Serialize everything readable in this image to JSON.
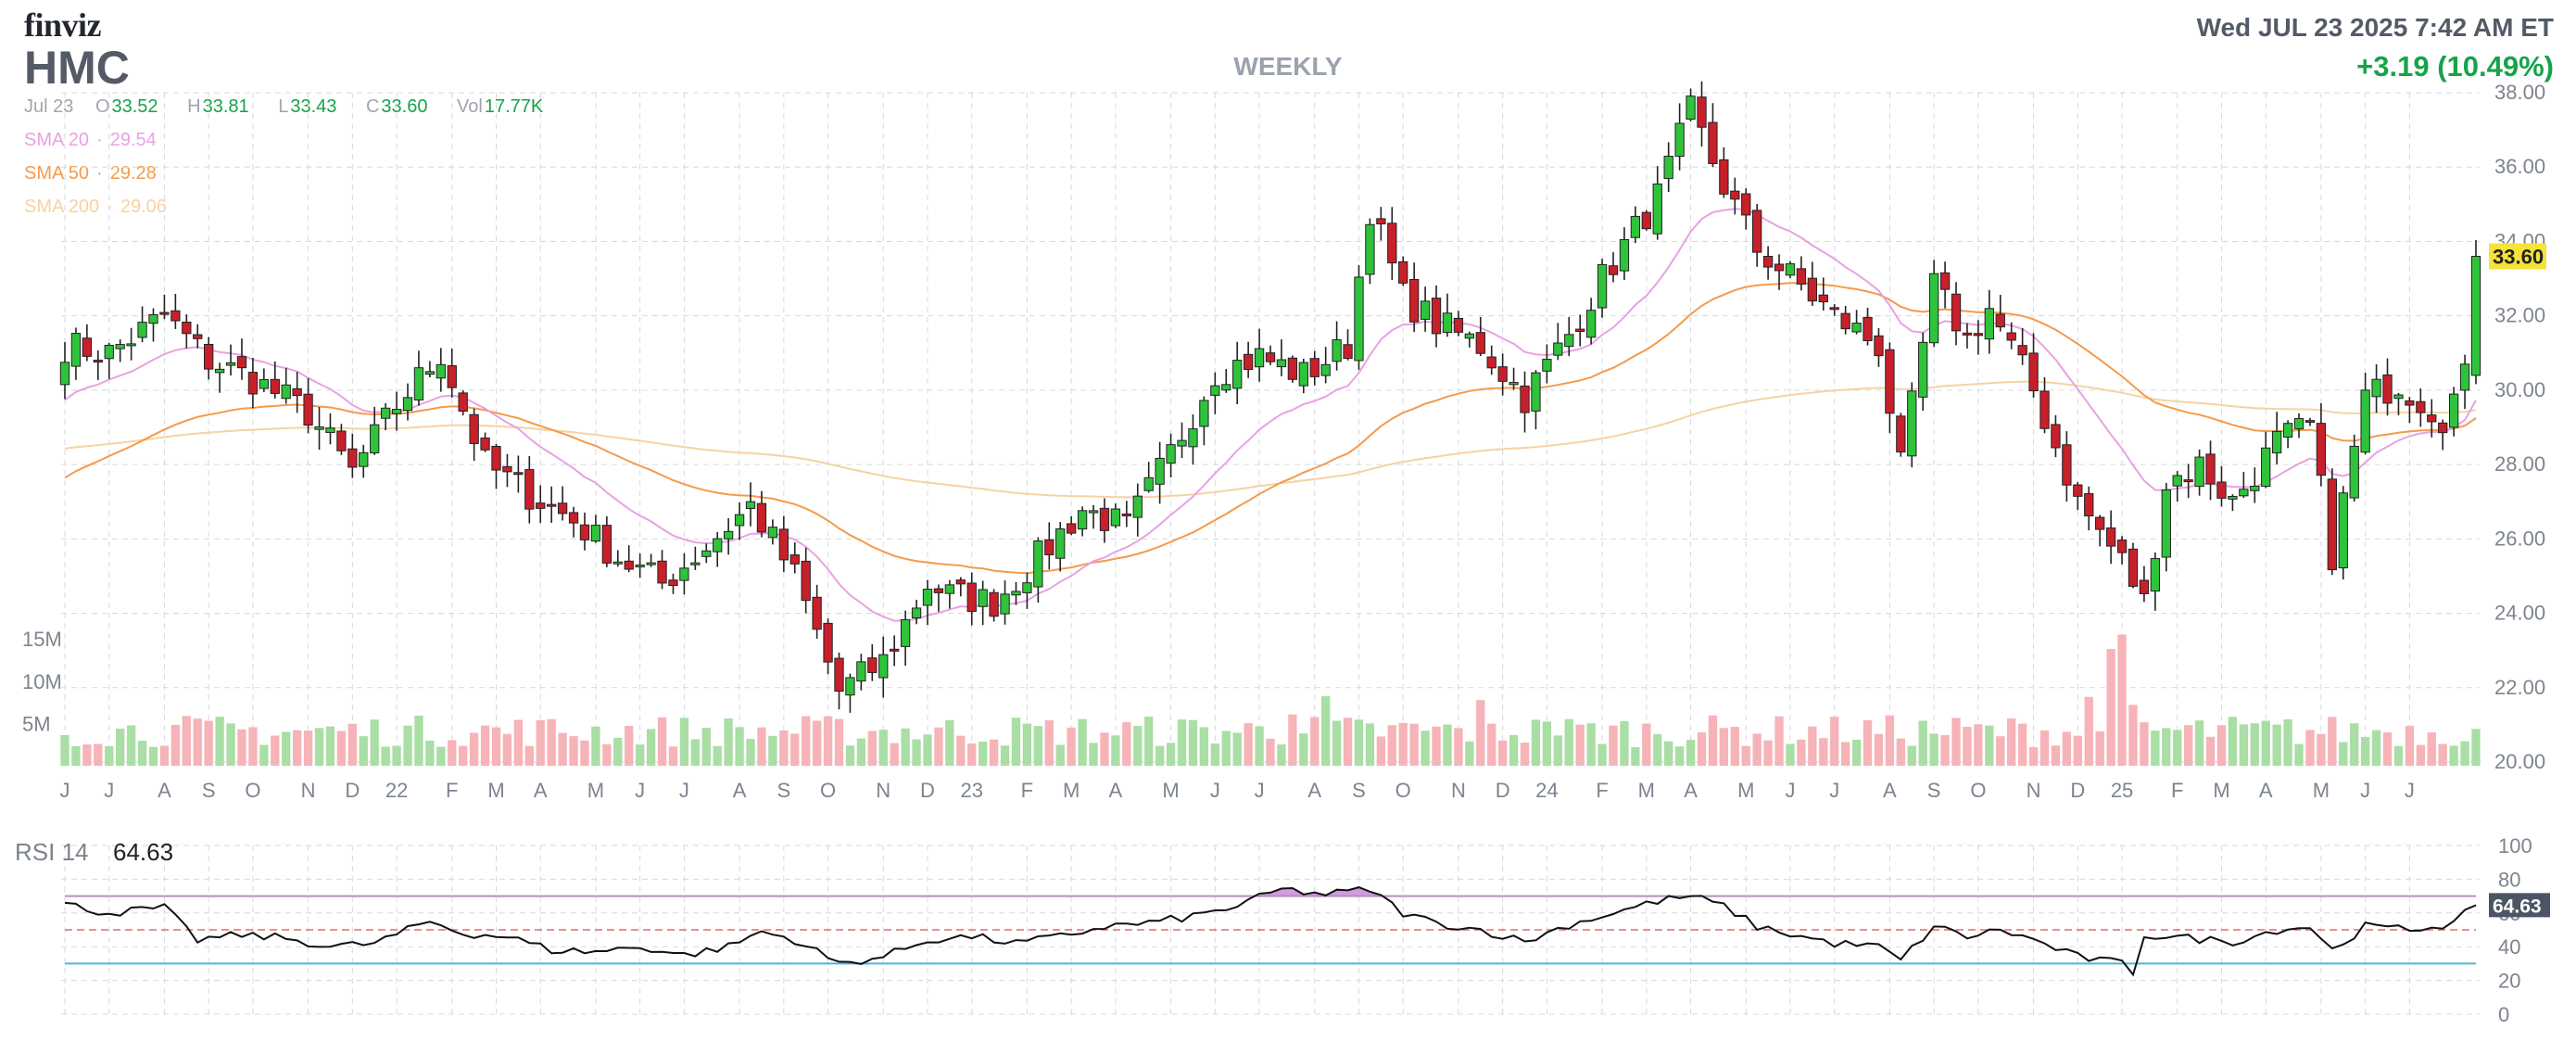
{
  "header": {
    "logo": "finviz",
    "ticker": "HMC",
    "timeframe": "WEEKLY",
    "datetime": "Wed JUL 23 2025 7:42 AM ET",
    "change": "+3.19 (10.49%)"
  },
  "ohlc": {
    "date": "Jul 23",
    "open_label": "O",
    "open": "33.52",
    "high_label": "H",
    "high": "33.81",
    "low_label": "L",
    "low": "33.43",
    "close_label": "C",
    "close": "33.60",
    "vol_label": "Vol",
    "vol": "17.77K"
  },
  "sma": [
    {
      "label": "SMA 20",
      "value": "29.54",
      "color": "#e8a2e2"
    },
    {
      "label": "SMA 50",
      "value": "29.28",
      "color": "#f59a4b"
    },
    {
      "label": "SMA 200",
      "value": "29.06",
      "color": "#f6d2a5"
    }
  ],
  "colors": {
    "up": "#2ec33b",
    "down": "#c8202a",
    "vol_up": "#a9dea5",
    "vol_down": "#f6b3b8",
    "grid": "#d6d9dd",
    "rsi_line": "#111111",
    "rsi_70": "#b48fbf",
    "rsi_50": "#e36b6b",
    "rsi_30": "#4fb6d6",
    "last_price_bg": "#f5e23a"
  },
  "chart_data": [
    {
      "type": "candlestick",
      "title": "HMC WEEKLY",
      "ylim": [
        20,
        38
      ],
      "yticks": [
        "38.00",
        "36.00",
        "34.00",
        "32.00",
        "30.00",
        "28.00",
        "26.00",
        "24.00",
        "22.00",
        "20.00"
      ],
      "x_labels": [
        "J",
        "J",
        "A",
        "S",
        "O",
        "N",
        "D",
        "22",
        "F",
        "M",
        "A",
        "M",
        "J",
        "J",
        "A",
        "S",
        "O",
        "N",
        "D",
        "23",
        "F",
        "M",
        "A",
        "M",
        "J",
        "J",
        "A",
        "S",
        "O",
        "N",
        "D",
        "24",
        "F",
        "M",
        "A",
        "M",
        "J",
        "J",
        "A",
        "S",
        "O",
        "N",
        "D",
        "25",
        "F",
        "M",
        "A",
        "M",
        "J",
        "J"
      ],
      "x_label_weeks": [
        0,
        4,
        9,
        13,
        17,
        22,
        26,
        30,
        35,
        39,
        43,
        48,
        52,
        56,
        61,
        65,
        69,
        74,
        78,
        82,
        87,
        91,
        95,
        100,
        104,
        108,
        113,
        117,
        121,
        126,
        130,
        134,
        139,
        143,
        147,
        152,
        156,
        160,
        165,
        169,
        173,
        178,
        182,
        186,
        191,
        195,
        199,
        204,
        208,
        212
      ],
      "last_price": "33.60",
      "close_anchors": [
        [
          0,
          31.2
        ],
        [
          4,
          31.0
        ],
        [
          9,
          32.0
        ],
        [
          13,
          30.8
        ],
        [
          17,
          30.3
        ],
        [
          22,
          29.4
        ],
        [
          26,
          27.8
        ],
        [
          30,
          29.6
        ],
        [
          34,
          31.0
        ],
        [
          38,
          28.0
        ],
        [
          42,
          27.2
        ],
        [
          46,
          26.5
        ],
        [
          50,
          25.5
        ],
        [
          54,
          24.8
        ],
        [
          58,
          25.8
        ],
        [
          62,
          26.9
        ],
        [
          66,
          25.0
        ],
        [
          70,
          21.9
        ],
        [
          74,
          22.7
        ],
        [
          78,
          24.8
        ],
        [
          80,
          24.5
        ],
        [
          84,
          24.3
        ],
        [
          88,
          25.5
        ],
        [
          92,
          26.8
        ],
        [
          96,
          26.3
        ],
        [
          100,
          28.3
        ],
        [
          104,
          30.5
        ],
        [
          108,
          30.9
        ],
        [
          112,
          30.4
        ],
        [
          116,
          31.2
        ],
        [
          118,
          34.9
        ],
        [
          121,
          32.5
        ],
        [
          124,
          31.8
        ],
        [
          128,
          31.2
        ],
        [
          132,
          29.8
        ],
        [
          136,
          31.5
        ],
        [
          139,
          33.0
        ],
        [
          144,
          35.2
        ],
        [
          147,
          37.5
        ],
        [
          150,
          35.5
        ],
        [
          153,
          33.8
        ],
        [
          157,
          32.8
        ],
        [
          160,
          32.0
        ],
        [
          164,
          31.2
        ],
        [
          166,
          27.9
        ],
        [
          169,
          32.8
        ],
        [
          172,
          31.4
        ],
        [
          174,
          32.2
        ],
        [
          178,
          30.0
        ],
        [
          182,
          27.0
        ],
        [
          186,
          25.4
        ],
        [
          188,
          24.3
        ],
        [
          190,
          27.5
        ],
        [
          193,
          28.0
        ],
        [
          196,
          27.0
        ],
        [
          200,
          28.6
        ],
        [
          203,
          29.0
        ],
        [
          205,
          25.6
        ],
        [
          208,
          29.8
        ],
        [
          211,
          30.2
        ],
        [
          215,
          29.3
        ],
        [
          217,
          30.3
        ],
        [
          218,
          33.6
        ]
      ],
      "volume_scale_labels": [
        "15M",
        "10M",
        "5M"
      ],
      "volume_max": 16000000
    },
    {
      "type": "line",
      "title": "RSI 14",
      "current_label": "RSI 14",
      "current_value": "64.63",
      "ylim": [
        0,
        100
      ],
      "yticks": [
        "100",
        "80",
        "60",
        "40",
        "20",
        "0"
      ],
      "levels": [
        70,
        50,
        30
      ],
      "anchors": [
        [
          0,
          65
        ],
        [
          4,
          60
        ],
        [
          9,
          63
        ],
        [
          12,
          44
        ],
        [
          16,
          47
        ],
        [
          20,
          45
        ],
        [
          24,
          40
        ],
        [
          28,
          42
        ],
        [
          33,
          55
        ],
        [
          36,
          48
        ],
        [
          40,
          46
        ],
        [
          44,
          38
        ],
        [
          48,
          37
        ],
        [
          52,
          40
        ],
        [
          56,
          35
        ],
        [
          60,
          40
        ],
        [
          63,
          49
        ],
        [
          66,
          44
        ],
        [
          70,
          30
        ],
        [
          74,
          34
        ],
        [
          78,
          44
        ],
        [
          82,
          46
        ],
        [
          86,
          42
        ],
        [
          90,
          46
        ],
        [
          94,
          52
        ],
        [
          98,
          54
        ],
        [
          102,
          58
        ],
        [
          106,
          64
        ],
        [
          110,
          74
        ],
        [
          114,
          71
        ],
        [
          118,
          74
        ],
        [
          121,
          60
        ],
        [
          124,
          54
        ],
        [
          128,
          50
        ],
        [
          132,
          43
        ],
        [
          136,
          53
        ],
        [
          140,
          60
        ],
        [
          144,
          67
        ],
        [
          147,
          70
        ],
        [
          150,
          64
        ],
        [
          153,
          52
        ],
        [
          157,
          46
        ],
        [
          160,
          42
        ],
        [
          164,
          40
        ],
        [
          166,
          32
        ],
        [
          169,
          52
        ],
        [
          172,
          46
        ],
        [
          175,
          50
        ],
        [
          178,
          44
        ],
        [
          182,
          34
        ],
        [
          186,
          30
        ],
        [
          187,
          25
        ],
        [
          188,
          47
        ],
        [
          192,
          45
        ],
        [
          196,
          43
        ],
        [
          200,
          50
        ],
        [
          203,
          52
        ],
        [
          205,
          38
        ],
        [
          208,
          52
        ],
        [
          212,
          50
        ],
        [
          216,
          54
        ],
        [
          218,
          64.6
        ]
      ]
    }
  ]
}
